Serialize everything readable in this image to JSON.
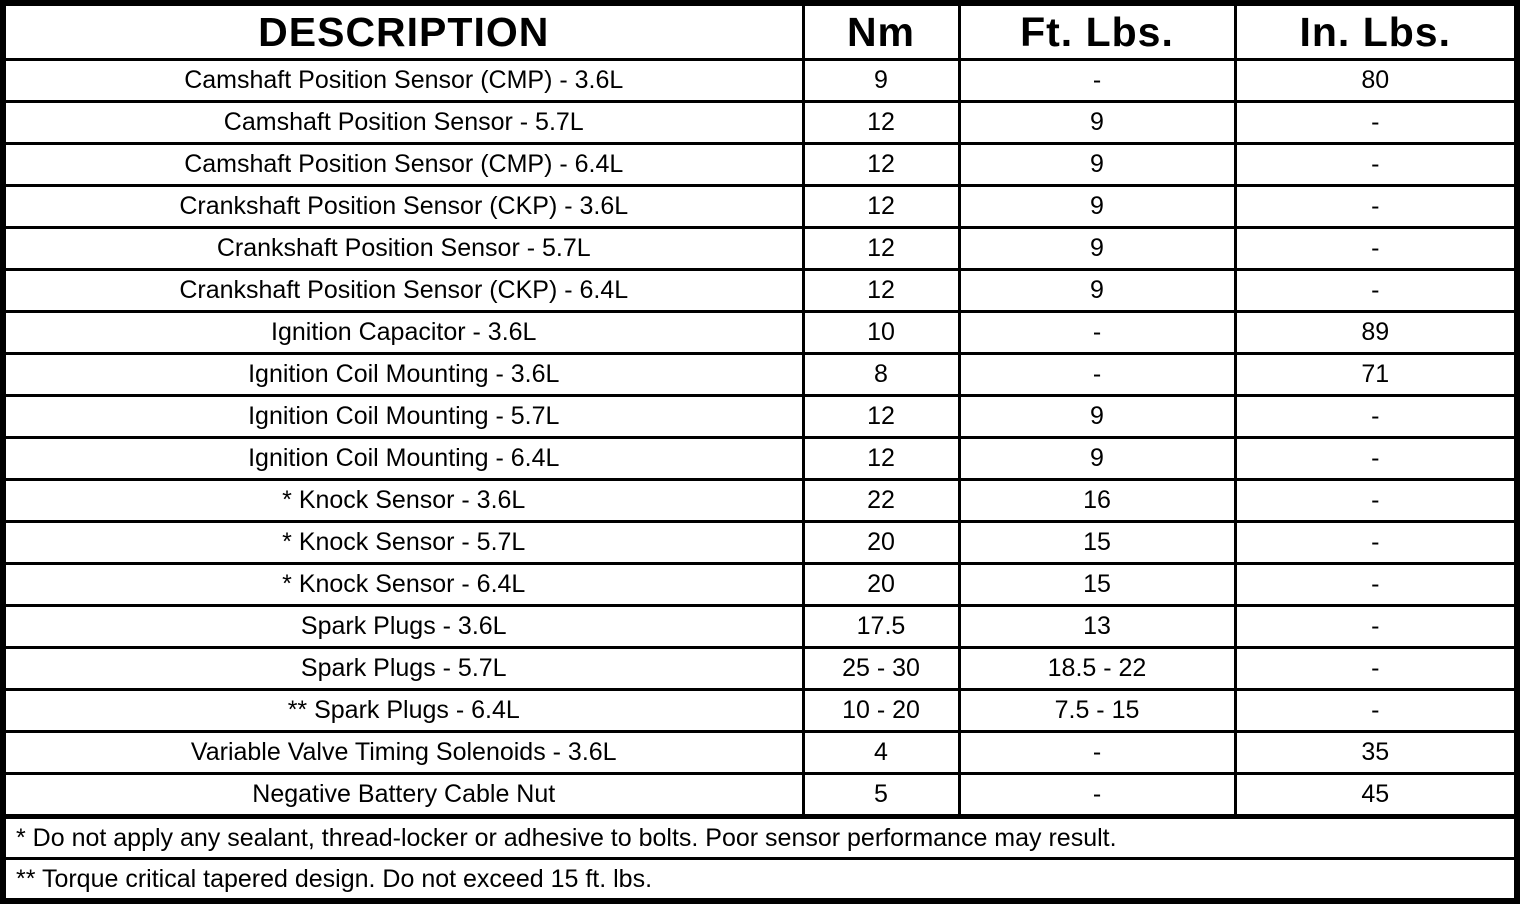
{
  "colors": {
    "border": "#000000",
    "text": "#000000",
    "background": "#ffffff"
  },
  "table": {
    "columns": [
      {
        "label": "DESCRIPTION"
      },
      {
        "label": "Nm"
      },
      {
        "label": "Ft. Lbs."
      },
      {
        "label": "In. Lbs."
      }
    ],
    "rows": [
      {
        "description": "Camshaft Position Sensor (CMP) - 3.6L",
        "nm": "9",
        "ft_lbs": "-",
        "in_lbs": "80"
      },
      {
        "description": "Camshaft Position Sensor - 5.7L",
        "nm": "12",
        "ft_lbs": "9",
        "in_lbs": "-"
      },
      {
        "description": "Camshaft Position Sensor (CMP) - 6.4L",
        "nm": "12",
        "ft_lbs": "9",
        "in_lbs": "-"
      },
      {
        "description": "Crankshaft Position Sensor (CKP) - 3.6L",
        "nm": "12",
        "ft_lbs": "9",
        "in_lbs": "-"
      },
      {
        "description": "Crankshaft Position Sensor - 5.7L",
        "nm": "12",
        "ft_lbs": "9",
        "in_lbs": "-"
      },
      {
        "description": "Crankshaft Position Sensor (CKP) - 6.4L",
        "nm": "12",
        "ft_lbs": "9",
        "in_lbs": "-"
      },
      {
        "description": "Ignition Capacitor - 3.6L",
        "nm": "10",
        "ft_lbs": "-",
        "in_lbs": "89"
      },
      {
        "description": "Ignition Coil Mounting - 3.6L",
        "nm": "8",
        "ft_lbs": "-",
        "in_lbs": "71"
      },
      {
        "description": "Ignition Coil Mounting - 5.7L",
        "nm": "12",
        "ft_lbs": "9",
        "in_lbs": "-"
      },
      {
        "description": "Ignition Coil Mounting - 6.4L",
        "nm": "12",
        "ft_lbs": "9",
        "in_lbs": "-"
      },
      {
        "description": "* Knock Sensor - 3.6L",
        "nm": "22",
        "ft_lbs": "16",
        "in_lbs": "-"
      },
      {
        "description": "* Knock Sensor - 5.7L",
        "nm": "20",
        "ft_lbs": "15",
        "in_lbs": "-"
      },
      {
        "description": "* Knock Sensor - 6.4L",
        "nm": "20",
        "ft_lbs": "15",
        "in_lbs": "-"
      },
      {
        "description": "Spark Plugs - 3.6L",
        "nm": "17.5",
        "ft_lbs": "13",
        "in_lbs": "-"
      },
      {
        "description": "Spark Plugs - 5.7L",
        "nm": "25 - 30",
        "ft_lbs": "18.5 - 22",
        "in_lbs": "-"
      },
      {
        "description": "** Spark Plugs - 6.4L",
        "nm": "10 - 20",
        "ft_lbs": "7.5 - 15",
        "in_lbs": "-"
      },
      {
        "description": "Variable Valve Timing Solenoids - 3.6L",
        "nm": "4",
        "ft_lbs": "-",
        "in_lbs": "35"
      },
      {
        "description": "Negative Battery Cable Nut",
        "nm": "5",
        "ft_lbs": "-",
        "in_lbs": "45"
      }
    ],
    "footnotes": [
      "* Do not apply any sealant, thread-locker or adhesive to bolts. Poor sensor performance may result.",
      "** Torque critical tapered design. Do not exceed 15 ft. lbs."
    ]
  }
}
